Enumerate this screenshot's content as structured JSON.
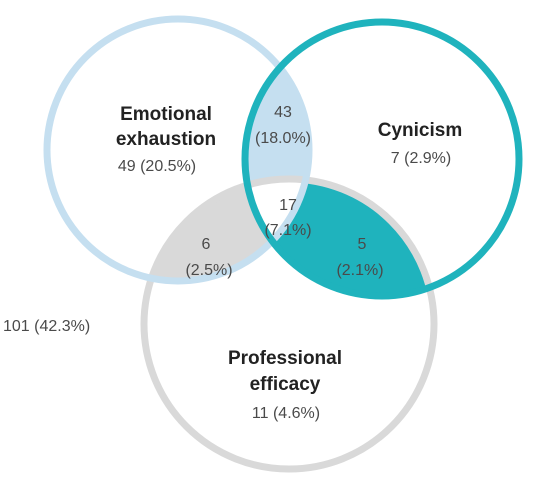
{
  "colors": {
    "emotional_exhaustion": "#c5dff0",
    "cynicism": "#1fb3bd",
    "professional_efficacy": "#d9d9d9",
    "text_dark": "#222222",
    "text_muted": "#4a4a4a"
  },
  "sets": {
    "emotional_exhaustion": {
      "title_line1": "Emotional",
      "title_line2": "exhaustion",
      "value": "49 (20.5%)"
    },
    "cynicism": {
      "title": "Cynicism",
      "value": "7 (2.9%)"
    },
    "professional_efficacy": {
      "title_line1": "Professional",
      "title_line2": "efficacy",
      "value": "11 (4.6%)"
    }
  },
  "intersections": {
    "ee_cy": {
      "count": "43",
      "pct": "(18.0%)"
    },
    "ee_pe": {
      "count": "6",
      "pct": "(2.5%)"
    },
    "cy_pe": {
      "count": "5",
      "pct": "(2.1%)"
    },
    "all": {
      "count": "17",
      "pct": "(7.1%)"
    }
  },
  "outside": {
    "value": "101 (42.3%)"
  }
}
